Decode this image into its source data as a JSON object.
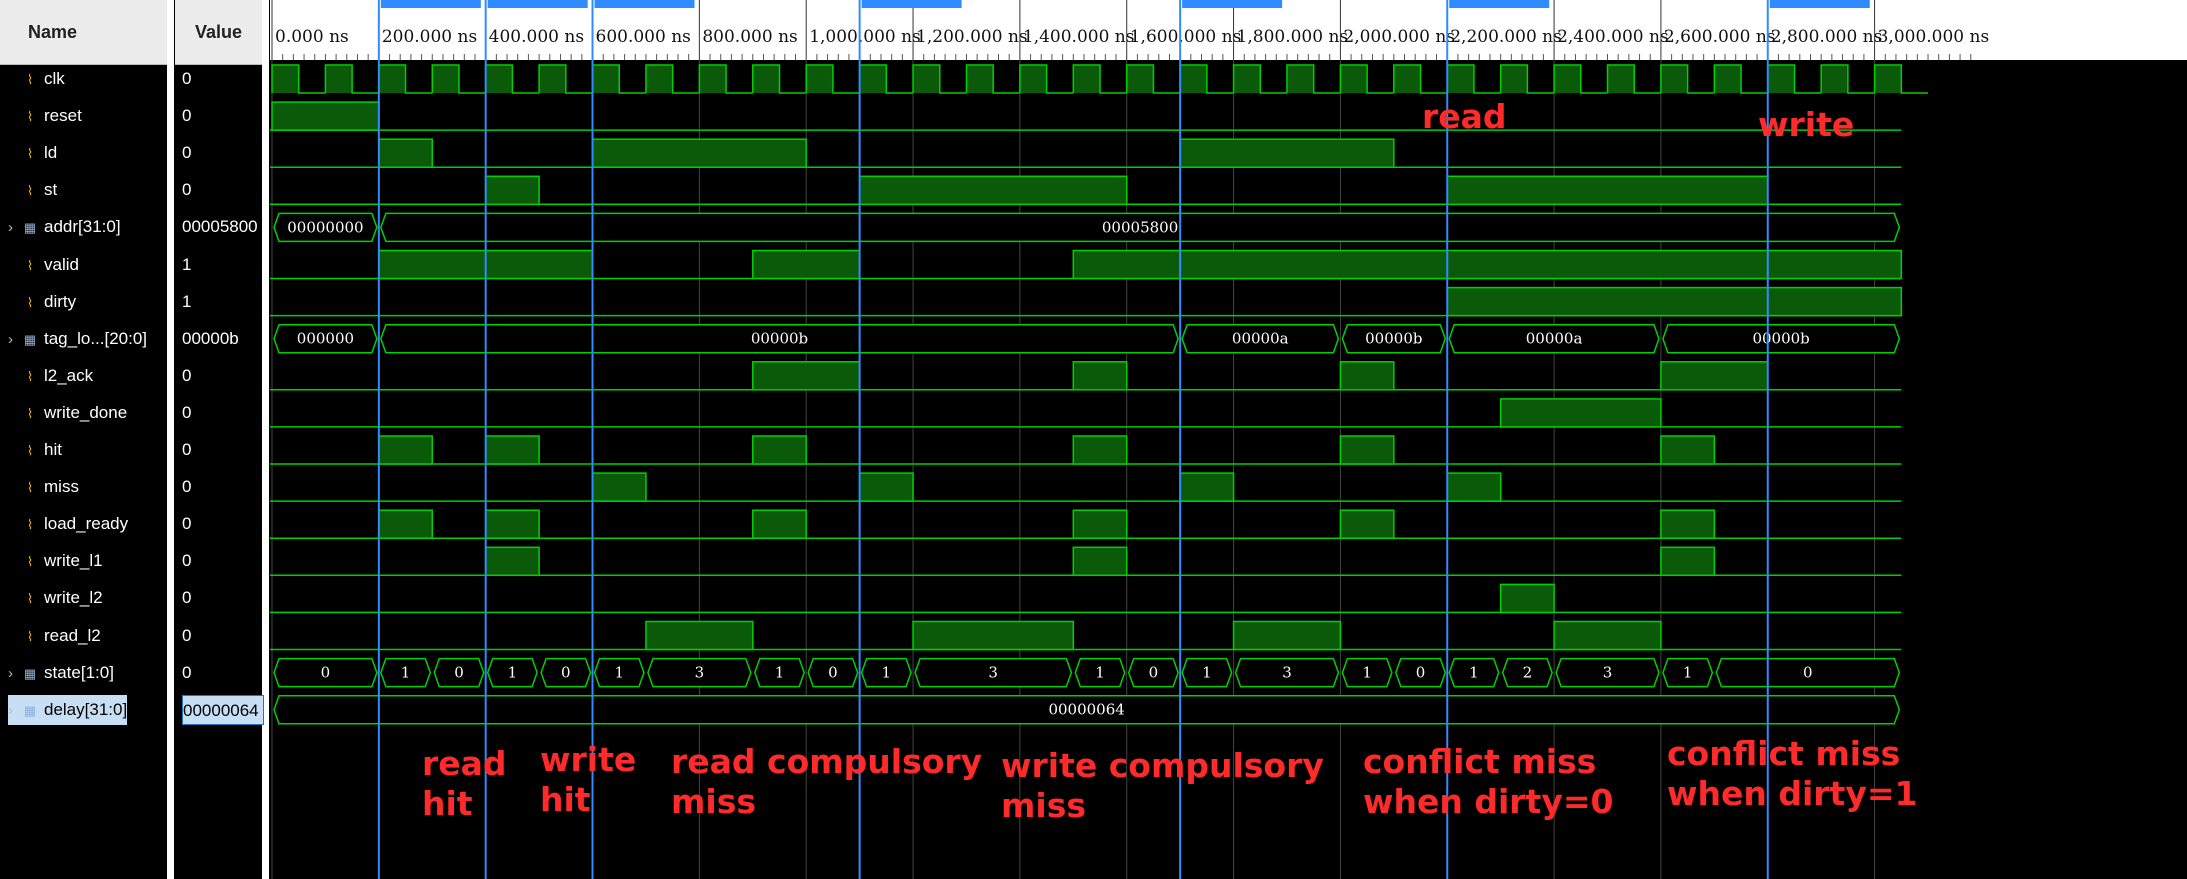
{
  "headers": {
    "name": "Name",
    "value": "Value"
  },
  "signals": [
    {
      "name": "clk",
      "value": "0",
      "type": "bit"
    },
    {
      "name": "reset",
      "value": "0",
      "type": "bit"
    },
    {
      "name": "ld",
      "value": "0",
      "type": "bit"
    },
    {
      "name": "st",
      "value": "0",
      "type": "bit"
    },
    {
      "name": "addr[31:0]",
      "value": "00005800",
      "type": "bus"
    },
    {
      "name": "valid",
      "value": "1",
      "type": "bit"
    },
    {
      "name": "dirty",
      "value": "1",
      "type": "bit"
    },
    {
      "name": "tag_lo...[20:0]",
      "value": "00000b",
      "type": "bus"
    },
    {
      "name": "l2_ack",
      "value": "0",
      "type": "bit"
    },
    {
      "name": "write_done",
      "value": "0",
      "type": "bit"
    },
    {
      "name": "hit",
      "value": "0",
      "type": "bit"
    },
    {
      "name": "miss",
      "value": "0",
      "type": "bit"
    },
    {
      "name": "load_ready",
      "value": "0",
      "type": "bit"
    },
    {
      "name": "write_l1",
      "value": "0",
      "type": "bit"
    },
    {
      "name": "write_l2",
      "value": "0",
      "type": "bit"
    },
    {
      "name": "read_l2",
      "value": "0",
      "type": "bit"
    },
    {
      "name": "state[1:0]",
      "value": "0",
      "type": "bus"
    },
    {
      "name": "delay[31:0]",
      "value": "00000064",
      "type": "bus",
      "selected": true
    }
  ],
  "timeline": {
    "end_ns": 3050,
    "ticks": [
      "0.000 ns",
      "200.000 ns",
      "400.000 ns",
      "600.000 ns",
      "800.000 ns",
      "1,000.000 ns",
      "1,200.000 ns",
      "1,400.000 ns",
      "1,600.000 ns",
      "1,800.000 ns",
      "2,000.000 ns",
      "2,200.000 ns",
      "2,400.000 ns",
      "2,600.000 ns",
      "2,800.000 ns",
      "3,000.000 ns"
    ],
    "tick_ns": [
      0,
      200,
      400,
      600,
      800,
      1000,
      1200,
      1400,
      1600,
      1800,
      2000,
      2200,
      2400,
      2600,
      2800,
      3000
    ],
    "markers_ns": [
      200,
      400,
      600,
      1100,
      1700,
      2200,
      2800
    ]
  },
  "waveforms": {
    "clk": {
      "period_ns": 100,
      "high_first": true
    },
    "reset": [
      [
        0,
        200
      ]
    ],
    "ld": [
      [
        200,
        300
      ],
      [
        600,
        1000
      ],
      [
        1700,
        2100
      ]
    ],
    "st": [
      [
        400,
        500
      ],
      [
        1100,
        1600
      ],
      [
        2200,
        2800
      ]
    ],
    "valid": [
      [
        200,
        600
      ],
      [
        900,
        1100
      ],
      [
        1500,
        3050
      ]
    ],
    "dirty": [
      [
        2200,
        3050
      ]
    ],
    "l2_ack": [
      [
        900,
        1100
      ],
      [
        1500,
        1600
      ],
      [
        2000,
        2100
      ],
      [
        2600,
        2800
      ]
    ],
    "write_done": [
      [
        2300,
        2600
      ]
    ],
    "hit": [
      [
        200,
        300
      ],
      [
        400,
        500
      ],
      [
        900,
        1000
      ],
      [
        1500,
        1600
      ],
      [
        2000,
        2100
      ],
      [
        2600,
        2700
      ]
    ],
    "miss": [
      [
        600,
        700
      ],
      [
        1100,
        1200
      ],
      [
        1700,
        1800
      ],
      [
        2200,
        2300
      ]
    ],
    "load_ready": [
      [
        200,
        300
      ],
      [
        400,
        500
      ],
      [
        900,
        1000
      ],
      [
        1500,
        1600
      ],
      [
        2000,
        2100
      ],
      [
        2600,
        2700
      ]
    ],
    "write_l1": [
      [
        400,
        500
      ],
      [
        1500,
        1600
      ],
      [
        2600,
        2700
      ]
    ],
    "write_l2": [
      [
        2300,
        2400
      ]
    ],
    "read_l2": [
      [
        700,
        900
      ],
      [
        1200,
        1500
      ],
      [
        1800,
        2000
      ],
      [
        2400,
        2600
      ]
    ],
    "addr[31:0]": [
      [
        0,
        200,
        "00000000"
      ],
      [
        200,
        3050,
        "00005800"
      ]
    ],
    "tag_lo...[20:0]": [
      [
        0,
        200,
        "000000"
      ],
      [
        200,
        1700,
        "00000b"
      ],
      [
        1700,
        2000,
        "00000a"
      ],
      [
        2000,
        2200,
        "00000b"
      ],
      [
        2200,
        2600,
        "00000a"
      ],
      [
        2600,
        3050,
        "00000b"
      ]
    ],
    "state[1:0]": [
      [
        0,
        200,
        "0"
      ],
      [
        200,
        300,
        "1"
      ],
      [
        300,
        400,
        "0"
      ],
      [
        400,
        500,
        "1"
      ],
      [
        500,
        600,
        "0"
      ],
      [
        600,
        700,
        "1"
      ],
      [
        700,
        900,
        "3"
      ],
      [
        900,
        1000,
        "1"
      ],
      [
        1000,
        1100,
        "0"
      ],
      [
        1100,
        1200,
        "1"
      ],
      [
        1200,
        1500,
        "3"
      ],
      [
        1500,
        1600,
        "1"
      ],
      [
        1600,
        1700,
        "0"
      ],
      [
        1700,
        1800,
        "1"
      ],
      [
        1800,
        2000,
        "3"
      ],
      [
        2000,
        2100,
        "1"
      ],
      [
        2100,
        2200,
        "0"
      ],
      [
        2200,
        2300,
        "1"
      ],
      [
        2300,
        2400,
        "2"
      ],
      [
        2400,
        2600,
        "3"
      ],
      [
        2600,
        2700,
        "1"
      ],
      [
        2700,
        3050,
        "0"
      ]
    ],
    "delay[31:0]": [
      [
        0,
        3050,
        "00000064"
      ]
    ]
  },
  "annotations": {
    "read_top": "read",
    "write_top": "write",
    "read_hit": "read\nhit",
    "write_hit": "write\nhit",
    "read_compulsory": "read compulsory\nmiss",
    "write_compulsory": "write compulsory\nmiss",
    "conflict_dirty0": "conflict miss\nwhen dirty=0",
    "conflict_dirty1": "conflict miss\nwhen dirty=1"
  },
  "colors": {
    "wave": "#00d000",
    "wave_fill": "#0a5a0a",
    "marker": "#2f8cff",
    "grid": "#2a2a2a",
    "annotation": "#ff2a2a",
    "header_bg": "#ececec"
  }
}
